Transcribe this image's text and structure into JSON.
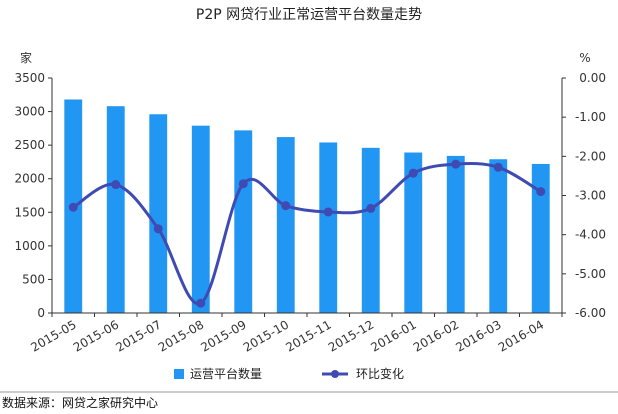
{
  "chart_data": {
    "type": "bar",
    "title": "P2P 网贷行业正常运营平台数量走势",
    "left_unit": "家",
    "right_unit": "%",
    "categories": [
      "2015-05",
      "2015-06",
      "2015-07",
      "2015-08",
      "2015-09",
      "2015-10",
      "2015-11",
      "2015-12",
      "2016-01",
      "2016-02",
      "2016-03",
      "2016-04"
    ],
    "left_axis": {
      "min": 0,
      "max": 3500,
      "ticks": [
        "0",
        "500",
        "1000",
        "1500",
        "2000",
        "2500",
        "3000",
        "3500"
      ]
    },
    "right_axis": {
      "min": -6.0,
      "max": 0.0,
      "ticks": [
        "-6.00",
        "-5.00",
        "-4.00",
        "-3.00",
        "-2.00",
        "-1.00",
        "0.00"
      ]
    },
    "series": [
      {
        "name": "运营平台数量",
        "type": "bar",
        "axis": "left",
        "color": "#2196F3",
        "values": [
          3180,
          3080,
          2960,
          2790,
          2720,
          2620,
          2540,
          2460,
          2390,
          2340,
          2290,
          2220
        ]
      },
      {
        "name": "环比变化",
        "type": "line",
        "axis": "right",
        "color": "#3F4BB3",
        "values": [
          -3.3,
          -2.72,
          -3.85,
          -5.75,
          -2.7,
          -3.26,
          -3.42,
          -3.33,
          -2.43,
          -2.2,
          -2.28,
          -2.9
        ]
      }
    ],
    "grid": false,
    "legend_position": "bottom"
  },
  "source": "数据来源：网贷之家研究中心"
}
